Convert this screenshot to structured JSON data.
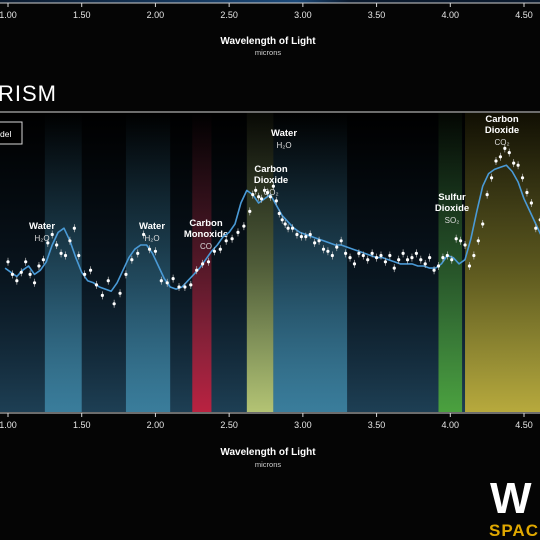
{
  "instrument_label": "RISM",
  "legend_label": "del",
  "brand": {
    "logo": "W",
    "sub": "SPAC"
  },
  "top_axis": {
    "title": "Wavelength of Light",
    "unit": "microns",
    "ticks": [
      "1.00",
      "1.50",
      "2.00",
      "2.50",
      "3.00",
      "3.50",
      "4.00",
      "4.50"
    ]
  },
  "chart_data": {
    "type": "line",
    "title": "",
    "xlabel": "Wavelength of Light",
    "xunit": "microns",
    "xlim": [
      0.98,
      4.93
    ],
    "ylim": [
      0,
      1
    ],
    "xticks": [
      "1.00",
      "1.50",
      "2.00",
      "2.50",
      "3.00",
      "3.50",
      "4.00",
      "4.50"
    ],
    "bands": [
      {
        "name": "Water",
        "formula": "H₂O",
        "range": [
          1.25,
          1.5
        ],
        "color": "#3f88a8"
      },
      {
        "name": "Water",
        "formula": "H₂O",
        "range": [
          1.8,
          2.1
        ],
        "color": "#3f88a8"
      },
      {
        "name": "Carbon Monoxide",
        "formula": "CO",
        "range": [
          2.25,
          2.38
        ],
        "color": "#9c1d33"
      },
      {
        "name": "Carbon Dioxide",
        "formula": "CO₂",
        "range": [
          2.62,
          2.8
        ],
        "color": "#a3b25a"
      },
      {
        "name": "Water",
        "formula": "H₂O",
        "range": [
          2.8,
          3.3
        ],
        "color": "#3f88a8"
      },
      {
        "name": "Sulfur Dioxide",
        "formula": "SO₂",
        "range": [
          3.92,
          4.08
        ],
        "color": "#3e8432"
      },
      {
        "name": "Carbon Dioxide",
        "formula": "CO₂",
        "range": [
          4.1,
          4.93
        ],
        "color": "#a9971f"
      }
    ],
    "model": {
      "x": [
        0.98,
        1.02,
        1.06,
        1.1,
        1.14,
        1.18,
        1.22,
        1.26,
        1.3,
        1.34,
        1.38,
        1.42,
        1.46,
        1.5,
        1.54,
        1.58,
        1.62,
        1.66,
        1.7,
        1.74,
        1.78,
        1.82,
        1.86,
        1.9,
        1.94,
        1.98,
        2.02,
        2.06,
        2.1,
        2.14,
        2.18,
        2.22,
        2.26,
        2.3,
        2.34,
        2.38,
        2.42,
        2.46,
        2.5,
        2.54,
        2.58,
        2.62,
        2.66,
        2.7,
        2.74,
        2.78,
        2.82,
        2.86,
        2.9,
        2.94,
        2.98,
        3.02,
        3.06,
        3.1,
        3.14,
        3.18,
        3.22,
        3.26,
        3.3,
        3.34,
        3.38,
        3.42,
        3.46,
        3.5,
        3.54,
        3.58,
        3.62,
        3.66,
        3.7,
        3.74,
        3.78,
        3.82,
        3.86,
        3.9,
        3.94,
        3.98,
        4.02,
        4.06,
        4.1,
        4.14,
        4.18,
        4.22,
        4.26,
        4.3,
        4.34,
        4.38,
        4.42,
        4.46,
        4.5,
        4.54,
        4.58,
        4.62
      ],
      "y": [
        0.39,
        0.37,
        0.35,
        0.38,
        0.4,
        0.36,
        0.38,
        0.42,
        0.5,
        0.56,
        0.58,
        0.52,
        0.44,
        0.37,
        0.33,
        0.32,
        0.3,
        0.29,
        0.28,
        0.32,
        0.38,
        0.44,
        0.48,
        0.5,
        0.5,
        0.46,
        0.4,
        0.34,
        0.3,
        0.29,
        0.3,
        0.33,
        0.36,
        0.39,
        0.43,
        0.47,
        0.5,
        0.54,
        0.56,
        0.6,
        0.7,
        0.76,
        0.74,
        0.7,
        0.72,
        0.74,
        0.69,
        0.64,
        0.61,
        0.58,
        0.56,
        0.55,
        0.54,
        0.53,
        0.52,
        0.51,
        0.5,
        0.5,
        0.49,
        0.48,
        0.47,
        0.46,
        0.45,
        0.44,
        0.44,
        0.43,
        0.42,
        0.41,
        0.41,
        0.41,
        0.4,
        0.4,
        0.39,
        0.39,
        0.41,
        0.45,
        0.44,
        0.41,
        0.43,
        0.53,
        0.66,
        0.78,
        0.84,
        0.86,
        0.87,
        0.88,
        0.85,
        0.8,
        0.72,
        0.66,
        0.6,
        0.54
      ]
    },
    "observed": {
      "x": [
        1.0,
        1.03,
        1.06,
        1.09,
        1.12,
        1.15,
        1.18,
        1.21,
        1.24,
        1.27,
        1.3,
        1.33,
        1.36,
        1.39,
        1.42,
        1.45,
        1.48,
        1.52,
        1.56,
        1.6,
        1.64,
        1.68,
        1.72,
        1.76,
        1.8,
        1.84,
        1.88,
        1.92,
        1.96,
        2.0,
        2.04,
        2.08,
        2.12,
        2.16,
        2.2,
        2.24,
        2.28,
        2.32,
        2.36,
        2.4,
        2.44,
        2.48,
        2.52,
        2.56,
        2.6,
        2.64,
        2.66,
        2.68,
        2.7,
        2.72,
        2.74,
        2.76,
        2.78,
        2.8,
        2.82,
        2.84,
        2.86,
        2.88,
        2.9,
        2.93,
        2.96,
        2.99,
        3.02,
        3.05,
        3.08,
        3.11,
        3.14,
        3.17,
        3.2,
        3.23,
        3.26,
        3.29,
        3.32,
        3.35,
        3.38,
        3.41,
        3.44,
        3.47,
        3.5,
        3.53,
        3.56,
        3.59,
        3.62,
        3.65,
        3.68,
        3.71,
        3.74,
        3.77,
        3.8,
        3.83,
        3.86,
        3.89,
        3.92,
        3.95,
        3.98,
        4.01,
        4.04,
        4.07,
        4.1,
        4.13,
        4.16,
        4.19,
        4.22,
        4.25,
        4.28,
        4.31,
        4.34,
        4.37,
        4.4,
        4.43,
        4.46,
        4.49,
        4.52,
        4.55,
        4.58,
        4.61
      ],
      "y": [
        0.42,
        0.36,
        0.33,
        0.37,
        0.42,
        0.36,
        0.32,
        0.4,
        0.43,
        0.51,
        0.55,
        0.5,
        0.46,
        0.45,
        0.52,
        0.58,
        0.45,
        0.36,
        0.38,
        0.31,
        0.26,
        0.33,
        0.22,
        0.27,
        0.36,
        0.43,
        0.46,
        0.55,
        0.48,
        0.47,
        0.33,
        0.32,
        0.34,
        0.3,
        0.3,
        0.31,
        0.38,
        0.41,
        0.42,
        0.47,
        0.48,
        0.52,
        0.53,
        0.56,
        0.59,
        0.66,
        0.74,
        0.76,
        0.73,
        0.72,
        0.76,
        0.75,
        0.73,
        0.78,
        0.71,
        0.65,
        0.62,
        0.6,
        0.58,
        0.58,
        0.55,
        0.54,
        0.54,
        0.55,
        0.51,
        0.52,
        0.48,
        0.47,
        0.45,
        0.49,
        0.52,
        0.46,
        0.44,
        0.41,
        0.46,
        0.45,
        0.43,
        0.46,
        0.44,
        0.45,
        0.42,
        0.45,
        0.39,
        0.43,
        0.46,
        0.43,
        0.44,
        0.46,
        0.43,
        0.41,
        0.44,
        0.38,
        0.4,
        0.44,
        0.45,
        0.43,
        0.53,
        0.52,
        0.5,
        0.4,
        0.45,
        0.52,
        0.6,
        0.74,
        0.82,
        0.9,
        0.92,
        0.96,
        0.94,
        0.89,
        0.88,
        0.82,
        0.75,
        0.7,
        0.58,
        0.62
      ]
    }
  }
}
